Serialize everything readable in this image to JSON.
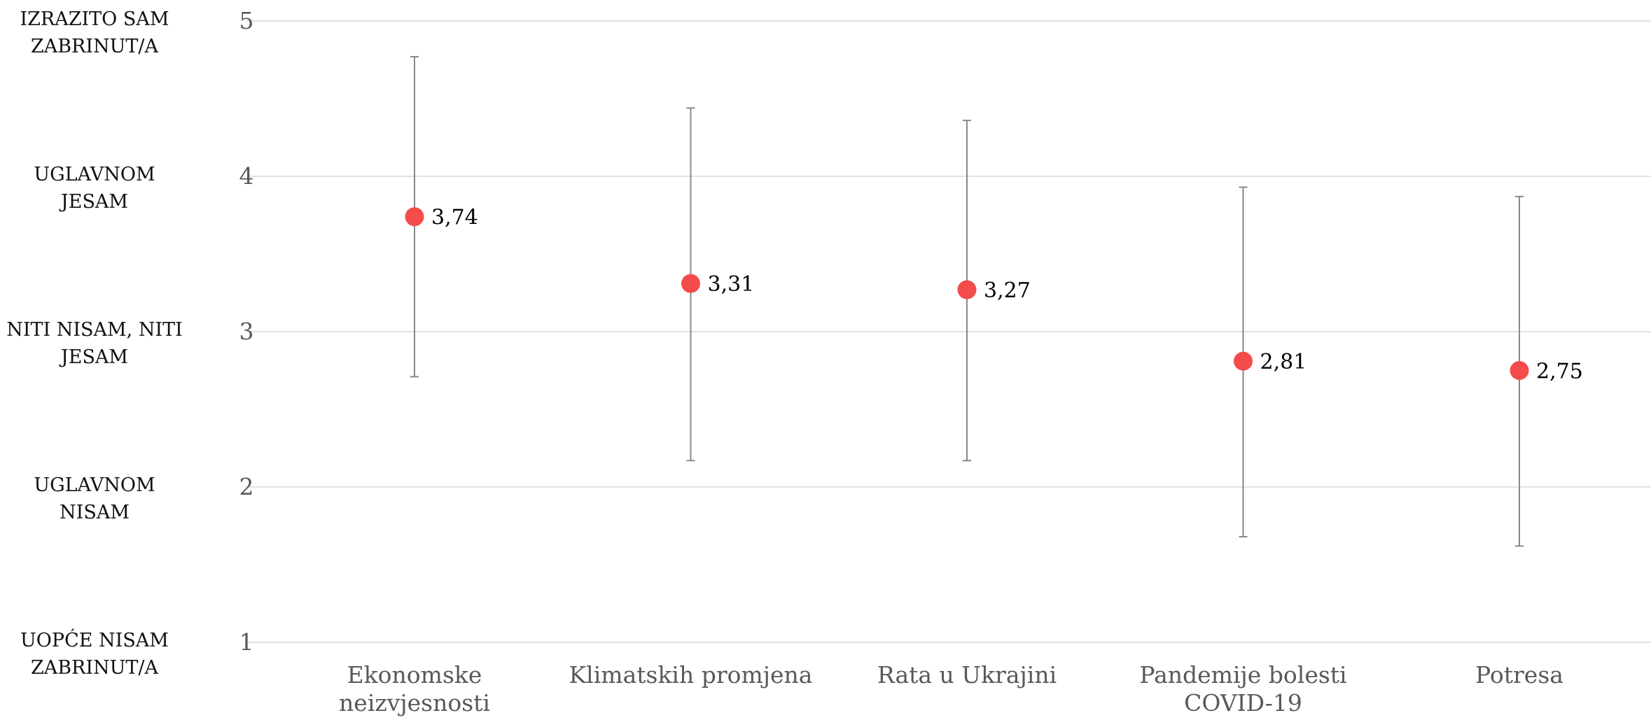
{
  "chart_data": {
    "type": "scatter",
    "title": "",
    "xlabel": "",
    "ylabel": "",
    "ylim": [
      1,
      5
    ],
    "yticks": [
      1,
      2,
      3,
      4,
      5
    ],
    "grid": true,
    "legend": "none",
    "categories": [
      [
        "Ekonomske",
        "neizvjesnosti"
      ],
      [
        "Klimatskih promjena"
      ],
      [
        "Rata u Ukrajini"
      ],
      [
        "Pandemije bolesti",
        "COVID-19"
      ],
      [
        "Potresa"
      ]
    ],
    "values": [
      3.74,
      3.31,
      3.27,
      2.81,
      2.75
    ],
    "value_labels": [
      "3,74",
      "3,31",
      "3,27",
      "2,81",
      "2,75"
    ],
    "error_low": [
      2.71,
      2.17,
      2.17,
      1.68,
      1.62
    ],
    "error_high": [
      4.77,
      4.44,
      4.36,
      3.93,
      3.87
    ],
    "scale_labels": [
      {
        "value": 5,
        "lines": [
          "IZRAZITO SAM",
          "ZABRINUT/A"
        ]
      },
      {
        "value": 4,
        "lines": [
          "UGLAVNOM",
          "JESAM"
        ]
      },
      {
        "value": 3,
        "lines": [
          "NITI NISAM, NITI",
          "JESAM"
        ]
      },
      {
        "value": 2,
        "lines": [
          "UGLAVNOM",
          "NISAM"
        ]
      },
      {
        "value": 1,
        "lines": [
          "UOPĆE NISAM",
          "ZABRINUT/A"
        ]
      }
    ],
    "colors": {
      "point": "#f44b4b",
      "error_bar": "#888888",
      "grid": "#d9d9d9"
    }
  }
}
